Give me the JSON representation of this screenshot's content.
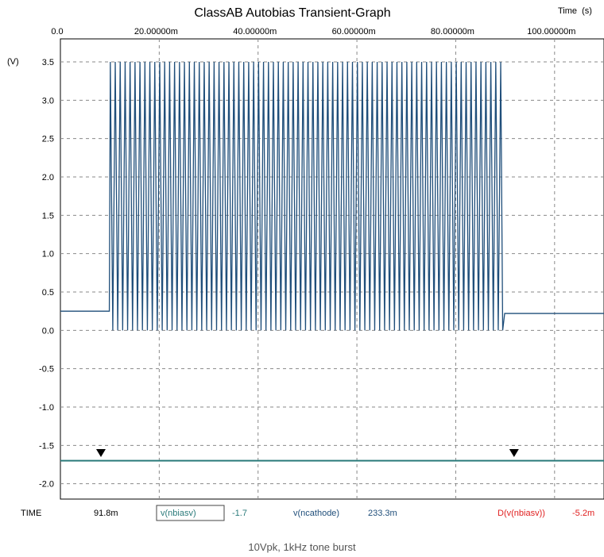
{
  "chart_data": {
    "type": "line",
    "title": "ClassAB Autobias Transient-Graph",
    "xlabel": "Time  (s)",
    "ylabel": "(V)",
    "x_ticks": [
      "0.0",
      "20.00000m",
      "40.00000m",
      "60.00000m",
      "80.00000m",
      "100.00000m"
    ],
    "x_tick_values": [
      0,
      0.02,
      0.04,
      0.06,
      0.08,
      0.1
    ],
    "y_ticks": [
      "3.5",
      "3.0",
      "2.5",
      "2.0",
      "1.5",
      "1.0",
      "0.5",
      "0.0",
      "-0.5",
      "-1.0",
      "-1.5",
      "-2.0"
    ],
    "y_tick_values": [
      3.5,
      3.0,
      2.5,
      2.0,
      1.5,
      1.0,
      0.5,
      0.0,
      -0.5,
      -1.0,
      -1.5,
      -2.0
    ],
    "xlim": [
      0,
      0.11
    ],
    "ylim": [
      -2.2,
      3.8
    ],
    "grid": true,
    "series": [
      {
        "name": "v(ncathode)",
        "color": "#1f4e7a",
        "x": [
          0.0,
          0.0099,
          0.0101,
          0.0895,
          0.0899,
          0.11
        ],
        "y": [
          0.25,
          0.25,
          3.5,
          0.0,
          0.22,
          0.22
        ],
        "burst": {
          "start": 0.0101,
          "end": 0.0895,
          "frequency_hz": 1000,
          "high": 3.5,
          "low": 0.0
        }
      },
      {
        "name": "v(nbiasv)",
        "color": "#2a7a7a",
        "x": [
          0.0,
          0.11
        ],
        "y": [
          -1.7,
          -1.7
        ]
      }
    ],
    "cursors": [
      {
        "x": 0.0082,
        "y": -1.6
      },
      {
        "x": 0.0918,
        "y": -1.6
      }
    ]
  },
  "readout": {
    "time_label": "TIME",
    "time_value": "91.8m",
    "probe1_label": "v(nbiasv)",
    "probe1_value": "-1.7",
    "probe2_label": "v(ncathode)",
    "probe2_value": "233.3m",
    "probe3_label": "D(v(nbiasv))",
    "probe3_value": "-5.2m"
  },
  "caption": "10Vpk, 1kHz tone burst"
}
